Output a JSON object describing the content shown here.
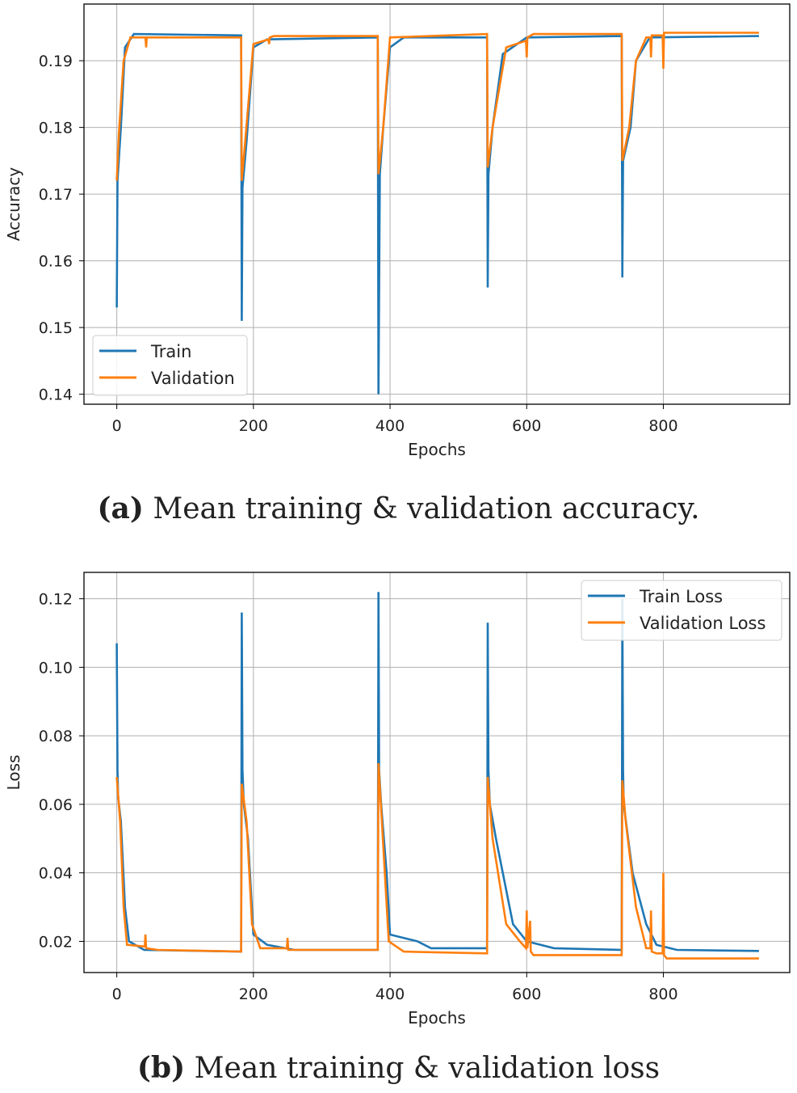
{
  "chart_data": [
    {
      "type": "line",
      "xlabel": "Epochs",
      "ylabel": "Accuracy",
      "xlim": [
        -48,
        985
      ],
      "ylim": [
        0.1385,
        0.1985
      ],
      "xticks": [
        0,
        200,
        400,
        600,
        800
      ],
      "yticks": [
        "0.14",
        "0.15",
        "0.16",
        "0.17",
        "0.18",
        "0.19"
      ],
      "grid": true,
      "legend": "lower-left",
      "caption_label": "(a)",
      "caption": "Mean training & validation accuracy.",
      "series": [
        {
          "name": "Train",
          "color": "#1f77b4",
          "x": [
            0,
            1,
            6,
            12,
            25,
            182,
            183,
            184,
            190,
            200,
            220,
            382,
            383,
            385,
            390,
            400,
            420,
            542,
            543,
            544,
            550,
            565,
            600,
            739,
            740,
            741,
            752,
            760,
            780,
            940
          ],
          "y": [
            0.153,
            0.172,
            0.18,
            0.192,
            0.194,
            0.1938,
            0.151,
            0.171,
            0.178,
            0.192,
            0.1932,
            0.1935,
            0.14,
            0.173,
            0.18,
            0.192,
            0.1935,
            0.1935,
            0.156,
            0.173,
            0.18,
            0.191,
            0.1935,
            0.1937,
            0.1575,
            0.175,
            0.18,
            0.19,
            0.1935,
            0.1937
          ]
        },
        {
          "name": "Validation",
          "color": "#ff7f0e",
          "x": [
            0,
            3,
            10,
            20,
            42,
            43,
            44,
            182,
            183,
            188,
            200,
            222,
            223,
            224,
            230,
            382,
            383,
            390,
            400,
            542,
            543,
            550,
            570,
            599,
            600,
            601,
            610,
            739,
            740,
            750,
            760,
            775,
            781,
            782,
            783,
            799,
            800,
            801,
            940
          ],
          "y": [
            0.172,
            0.179,
            0.19,
            0.1935,
            0.1935,
            0.192,
            0.1935,
            0.1935,
            0.172,
            0.178,
            0.1925,
            0.1932,
            0.1925,
            0.1935,
            0.1937,
            0.1937,
            0.173,
            0.18,
            0.1935,
            0.194,
            0.174,
            0.18,
            0.192,
            0.193,
            0.1905,
            0.1935,
            0.194,
            0.194,
            0.175,
            0.18,
            0.19,
            0.1935,
            0.1935,
            0.1905,
            0.1938,
            0.1938,
            0.1888,
            0.1942,
            0.1942
          ]
        }
      ]
    },
    {
      "type": "line",
      "xlabel": "Epochs",
      "ylabel": "Loss",
      "xlim": [
        -48,
        985
      ],
      "ylim": [
        0.0109,
        0.1277
      ],
      "xticks": [
        0,
        200,
        400,
        600,
        800
      ],
      "yticks": [
        "0.02",
        "0.04",
        "0.06",
        "0.08",
        "0.10",
        "0.12"
      ],
      "grid": true,
      "legend": "upper-right",
      "caption_label": "(b)",
      "caption": "Mean training & validation loss",
      "series": [
        {
          "name": "Train Loss",
          "color": "#1f77b4",
          "x": [
            0,
            1,
            2,
            6,
            12,
            18,
            40,
            182,
            183,
            184,
            186,
            192,
            200,
            220,
            260,
            382,
            383,
            384,
            387,
            395,
            400,
            440,
            460,
            542,
            543,
            544,
            546,
            555,
            580,
            600,
            640,
            739,
            740,
            741,
            742,
            755,
            775,
            790,
            820,
            940
          ],
          "y": [
            0.107,
            0.07,
            0.062,
            0.055,
            0.03,
            0.02,
            0.0175,
            0.017,
            0.116,
            0.07,
            0.06,
            0.05,
            0.022,
            0.019,
            0.0175,
            0.0175,
            0.122,
            0.07,
            0.06,
            0.04,
            0.022,
            0.02,
            0.018,
            0.018,
            0.113,
            0.07,
            0.06,
            0.05,
            0.025,
            0.02,
            0.018,
            0.0175,
            0.12,
            0.07,
            0.06,
            0.04,
            0.025,
            0.019,
            0.0175,
            0.0172
          ]
        },
        {
          "name": "Validation Loss",
          "color": "#ff7f0e",
          "x": [
            0,
            5,
            10,
            15,
            41,
            42,
            43,
            60,
            182,
            183,
            190,
            198,
            210,
            249,
            250,
            251,
            382,
            383,
            388,
            398,
            420,
            542,
            543,
            550,
            570,
            590,
            599,
            600,
            601,
            605,
            606,
            610,
            739,
            740,
            745,
            760,
            775,
            781,
            782,
            783,
            790,
            799,
            800,
            801,
            805,
            940
          ],
          "y": [
            0.068,
            0.055,
            0.03,
            0.019,
            0.0185,
            0.022,
            0.018,
            0.0175,
            0.017,
            0.066,
            0.055,
            0.025,
            0.018,
            0.018,
            0.021,
            0.0175,
            0.0175,
            0.072,
            0.055,
            0.02,
            0.017,
            0.0165,
            0.068,
            0.05,
            0.025,
            0.02,
            0.018,
            0.029,
            0.018,
            0.026,
            0.017,
            0.016,
            0.016,
            0.067,
            0.055,
            0.03,
            0.018,
            0.018,
            0.029,
            0.017,
            0.0165,
            0.0165,
            0.04,
            0.016,
            0.015,
            0.015
          ]
        }
      ]
    }
  ]
}
